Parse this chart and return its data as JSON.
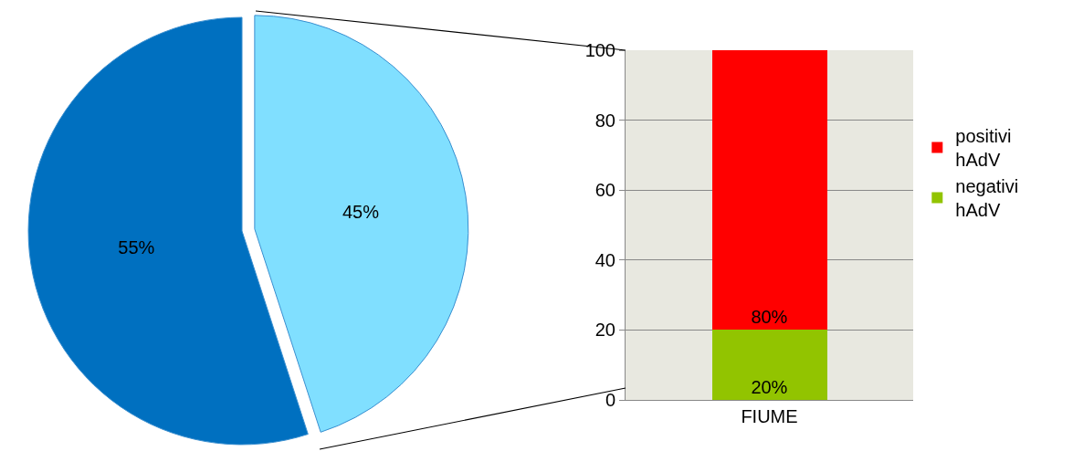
{
  "chart_data": [
    {
      "type": "pie",
      "categories": [
        null,
        null
      ],
      "values": [
        45,
        55
      ],
      "colors": [
        "#80dfff",
        "#0070c0"
      ],
      "value_labels": [
        "45%",
        "55%"
      ],
      "legend": false
    },
    {
      "type": "bar",
      "categories": [
        "FIUME"
      ],
      "stacked": true,
      "ylim": [
        0,
        100
      ],
      "yticks": [
        0,
        20,
        40,
        60,
        80,
        100
      ],
      "grid": "y",
      "legend": "right",
      "series": [
        {
          "name": "negativi hAdV",
          "color": "#92c400",
          "values": [
            20
          ],
          "value_labels": [
            "20%"
          ]
        },
        {
          "name": "positivi hAdV",
          "color": "#ff0000",
          "values": [
            80
          ],
          "value_labels": [
            "80%"
          ]
        }
      ]
    }
  ]
}
